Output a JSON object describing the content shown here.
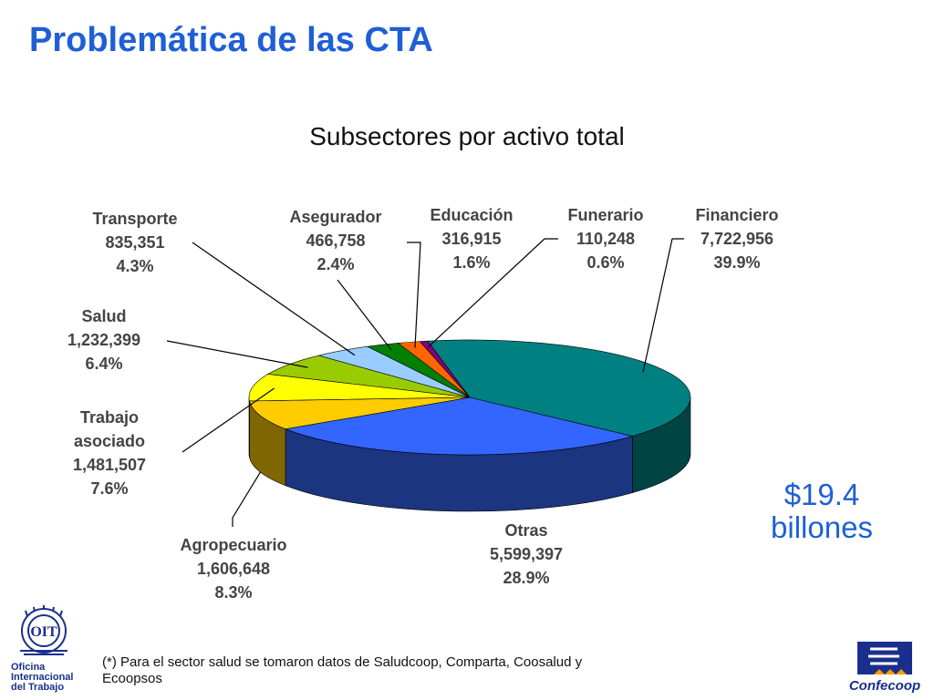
{
  "slide": {
    "title": "Problemática de las CTA",
    "total_value": "$19.4",
    "total_unit": "billones",
    "footnote": "(*) Para el sector salud se tomaron datos de Saludcoop, Comparta, Coosalud y Ecoopsos"
  },
  "logos": {
    "oit_caption": "Oficina Internacional del Trabajo",
    "oit_mark_text": "OIT",
    "confecoop_caption": "Confecoop"
  },
  "chart_data": {
    "type": "pie",
    "title": "Subsectores por activo total",
    "three_d": true,
    "slices": [
      {
        "name": "Financiero",
        "value": 7722956,
        "value_text": "7,722,956",
        "percent_text": "39.9%",
        "color": "#008080",
        "side_color": "#004444"
      },
      {
        "name": "Otras",
        "value": 5599397,
        "value_text": "5,599,397",
        "percent_text": "28.9%",
        "color": "#3366ff",
        "side_color": "#1b3580"
      },
      {
        "name": "Agropecuario",
        "value": 1606648,
        "value_text": "1,606,648",
        "percent_text": "8.3%",
        "color": "#ffcc00",
        "side_color": "#806600"
      },
      {
        "name": "Trabajo asociado",
        "value": 1481507,
        "value_text": "1,481,507",
        "percent_text": "7.6%",
        "color": "#ffff00",
        "side_color": "#808000"
      },
      {
        "name": "Salud",
        "value": 1232399,
        "value_text": "1,232,399",
        "percent_text": "6.4%",
        "color": "#99cc00",
        "side_color": "#4c6600"
      },
      {
        "name": "Transporte",
        "value": 835351,
        "value_text": "835,351",
        "percent_text": "4.3%",
        "color": "#99ccff",
        "side_color": "#4c6680"
      },
      {
        "name": "Asegurador",
        "value": 466758,
        "value_text": "466,758",
        "percent_text": "2.4%",
        "color": "#008000",
        "side_color": "#004000"
      },
      {
        "name": "Educación",
        "value": 316915,
        "value_text": "316,915",
        "percent_text": "1.6%",
        "color": "#ff6600",
        "side_color": "#803300"
      },
      {
        "name": "Funerario",
        "value": 110248,
        "value_text": "110,248",
        "percent_text": "0.6%",
        "color": "#800080",
        "side_color": "#400040"
      }
    ]
  }
}
